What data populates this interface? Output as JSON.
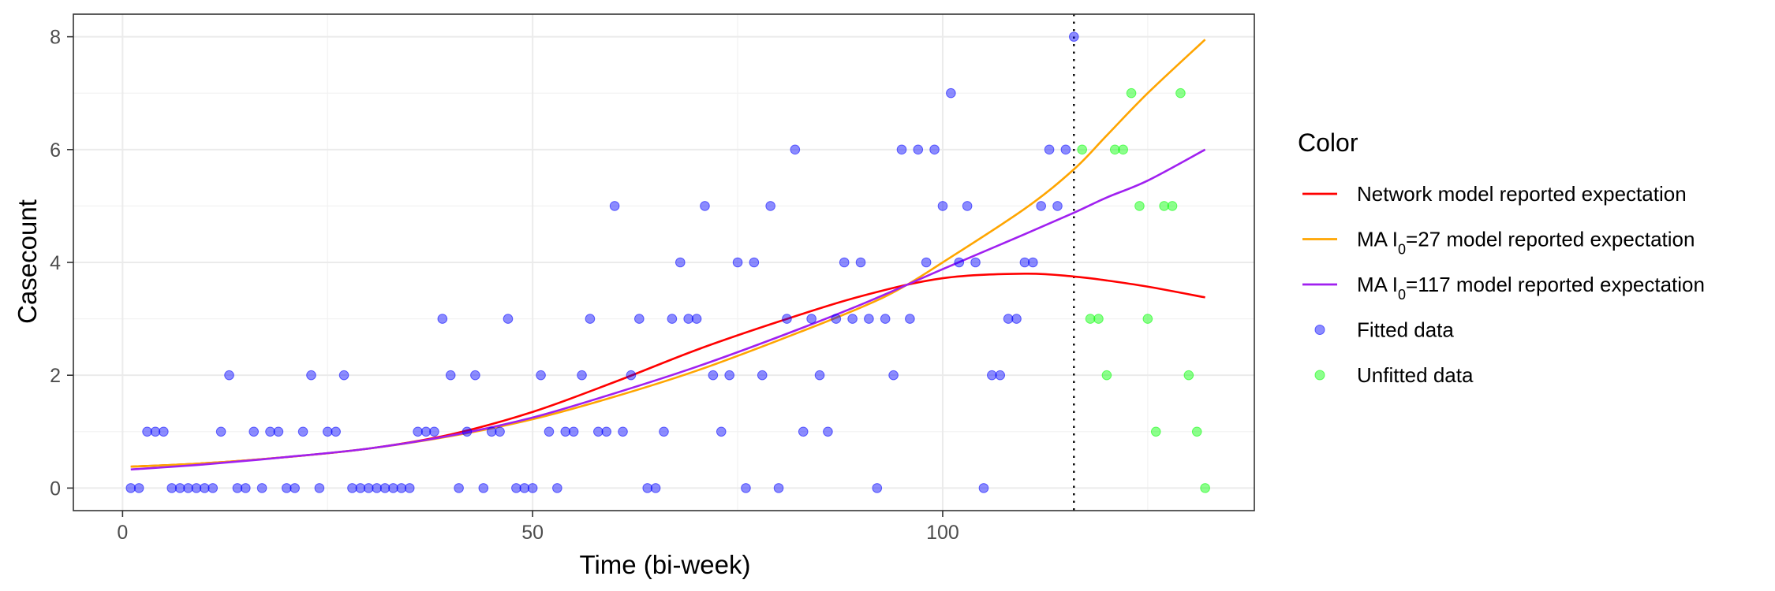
{
  "chart_data": {
    "type": "scatter",
    "xlabel": "Time (bi-week)",
    "ylabel": "Casecount",
    "xlim": [
      -6,
      138
    ],
    "ylim": [
      -0.4,
      8.4
    ],
    "x_ticks": [
      0,
      50,
      100
    ],
    "y_ticks": [
      0,
      2,
      4,
      6,
      8
    ],
    "grid": true,
    "cutoff_x": 116,
    "legend": {
      "title": "Color",
      "position": "right",
      "entries": [
        {
          "label": "Network model reported expectation",
          "kind": "line",
          "color": "#FF0000"
        },
        {
          "label_pre": "MA  I",
          "label_sub": "0",
          "label_post": "=27 model reported expectation",
          "kind": "line",
          "color": "#FFA500"
        },
        {
          "label_pre": "MA  I",
          "label_sub": "0",
          "label_post": "=117 model reported expectation",
          "kind": "line",
          "color": "#A020F0"
        },
        {
          "label": "Fitted data",
          "kind": "point",
          "color": "#0000FF"
        },
        {
          "label": "Unfitted data",
          "kind": "point",
          "color": "#00FF00"
        }
      ]
    },
    "lines": [
      {
        "name": "Network model reported expectation",
        "color": "#FF0000",
        "x": [
          1,
          10,
          20,
          30,
          40,
          50,
          60,
          70,
          80,
          90,
          100,
          110,
          116,
          120,
          125,
          132
        ],
        "y": [
          0.38,
          0.44,
          0.55,
          0.7,
          0.95,
          1.35,
          1.88,
          2.45,
          2.95,
          3.4,
          3.72,
          3.8,
          3.75,
          3.68,
          3.57,
          3.38
        ]
      },
      {
        "name": "MA I0=27 model reported expectation",
        "color": "#FFA500",
        "x": [
          1,
          10,
          20,
          30,
          40,
          50,
          60,
          70,
          80,
          90,
          95,
          100,
          110,
          116,
          120,
          125,
          132
        ],
        "y": [
          0.38,
          0.44,
          0.55,
          0.7,
          0.92,
          1.22,
          1.62,
          2.08,
          2.62,
          3.2,
          3.55,
          4.0,
          4.95,
          5.65,
          6.25,
          7.0,
          7.95
        ]
      },
      {
        "name": "MA I0=117 model reported expectation",
        "color": "#A020F0",
        "x": [
          1,
          10,
          20,
          30,
          40,
          50,
          60,
          70,
          80,
          90,
          100,
          110,
          116,
          120,
          125,
          132
        ],
        "y": [
          0.33,
          0.42,
          0.55,
          0.7,
          0.93,
          1.25,
          1.68,
          2.15,
          2.68,
          3.25,
          3.88,
          4.5,
          4.88,
          5.15,
          5.45,
          6.0
        ]
      }
    ],
    "fitted": {
      "name": "Fitted data",
      "color": "#0000FF",
      "points": [
        [
          1,
          0
        ],
        [
          2,
          0
        ],
        [
          3,
          1
        ],
        [
          4,
          1
        ],
        [
          5,
          1
        ],
        [
          6,
          0
        ],
        [
          7,
          0
        ],
        [
          8,
          0
        ],
        [
          9,
          0
        ],
        [
          10,
          0
        ],
        [
          11,
          0
        ],
        [
          12,
          1
        ],
        [
          13,
          2
        ],
        [
          14,
          0
        ],
        [
          15,
          0
        ],
        [
          16,
          1
        ],
        [
          17,
          0
        ],
        [
          18,
          1
        ],
        [
          19,
          1
        ],
        [
          20,
          0
        ],
        [
          21,
          0
        ],
        [
          22,
          1
        ],
        [
          23,
          2
        ],
        [
          24,
          0
        ],
        [
          25,
          1
        ],
        [
          26,
          1
        ],
        [
          27,
          2
        ],
        [
          28,
          0
        ],
        [
          29,
          0
        ],
        [
          30,
          0
        ],
        [
          31,
          0
        ],
        [
          32,
          0
        ],
        [
          33,
          0
        ],
        [
          34,
          0
        ],
        [
          35,
          0
        ],
        [
          36,
          1
        ],
        [
          37,
          1
        ],
        [
          38,
          1
        ],
        [
          39,
          3
        ],
        [
          40,
          2
        ],
        [
          41,
          0
        ],
        [
          42,
          1
        ],
        [
          43,
          2
        ],
        [
          44,
          0
        ],
        [
          45,
          1
        ],
        [
          46,
          1
        ],
        [
          47,
          3
        ],
        [
          48,
          0
        ],
        [
          49,
          0
        ],
        [
          50,
          0
        ],
        [
          51,
          2
        ],
        [
          52,
          1
        ],
        [
          53,
          0
        ],
        [
          54,
          1
        ],
        [
          55,
          1
        ],
        [
          56,
          2
        ],
        [
          57,
          3
        ],
        [
          58,
          1
        ],
        [
          59,
          1
        ],
        [
          60,
          5
        ],
        [
          61,
          1
        ],
        [
          62,
          2
        ],
        [
          63,
          3
        ],
        [
          64,
          0
        ],
        [
          65,
          0
        ],
        [
          66,
          1
        ],
        [
          67,
          3
        ],
        [
          68,
          4
        ],
        [
          69,
          3
        ],
        [
          70,
          3
        ],
        [
          71,
          5
        ],
        [
          72,
          2
        ],
        [
          73,
          1
        ],
        [
          74,
          2
        ],
        [
          75,
          4
        ],
        [
          76,
          0
        ],
        [
          77,
          4
        ],
        [
          78,
          2
        ],
        [
          79,
          5
        ],
        [
          80,
          0
        ],
        [
          81,
          3
        ],
        [
          82,
          6
        ],
        [
          83,
          1
        ],
        [
          84,
          3
        ],
        [
          85,
          2
        ],
        [
          86,
          1
        ],
        [
          87,
          3
        ],
        [
          88,
          4
        ],
        [
          89,
          3
        ],
        [
          90,
          4
        ],
        [
          91,
          3
        ],
        [
          92,
          0
        ],
        [
          93,
          3
        ],
        [
          94,
          2
        ],
        [
          95,
          6
        ],
        [
          96,
          3
        ],
        [
          97,
          6
        ],
        [
          98,
          4
        ],
        [
          99,
          6
        ],
        [
          100,
          5
        ],
        [
          101,
          7
        ],
        [
          102,
          4
        ],
        [
          103,
          5
        ],
        [
          104,
          4
        ],
        [
          105,
          0
        ],
        [
          106,
          2
        ],
        [
          107,
          2
        ],
        [
          108,
          3
        ],
        [
          109,
          3
        ],
        [
          110,
          4
        ],
        [
          111,
          4
        ],
        [
          112,
          5
        ],
        [
          113,
          6
        ],
        [
          114,
          5
        ],
        [
          115,
          6
        ],
        [
          116,
          8
        ]
      ]
    },
    "unfitted": {
      "name": "Unfitted data",
      "color": "#00FF00",
      "points": [
        [
          117,
          6
        ],
        [
          118,
          3
        ],
        [
          119,
          3
        ],
        [
          120,
          2
        ],
        [
          121,
          6
        ],
        [
          122,
          6
        ],
        [
          123,
          7
        ],
        [
          124,
          5
        ],
        [
          125,
          3
        ],
        [
          126,
          1
        ],
        [
          127,
          5
        ],
        [
          128,
          5
        ],
        [
          129,
          7
        ],
        [
          130,
          2
        ],
        [
          131,
          1
        ],
        [
          132,
          0
        ]
      ]
    }
  }
}
